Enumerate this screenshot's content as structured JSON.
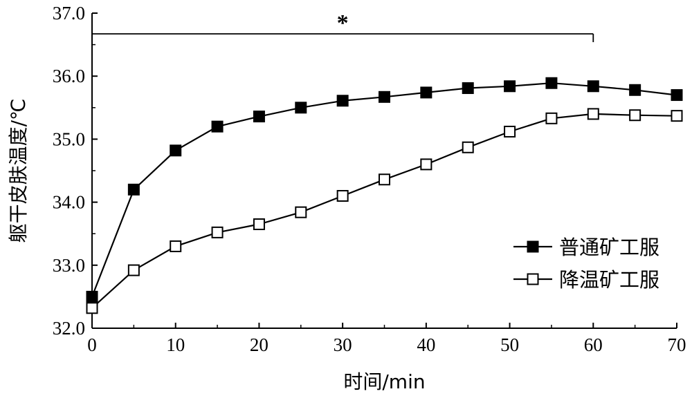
{
  "chart_data": {
    "type": "line",
    "xlabel": "时间/min",
    "ylabel": "躯干皮肤温度/℃",
    "xlim": [
      0,
      70
    ],
    "ylim": [
      32.0,
      37.0
    ],
    "xticks": [
      "0",
      "10",
      "20",
      "30",
      "40",
      "50",
      "60",
      "70"
    ],
    "yticks": [
      "32.0",
      "33.0",
      "34.0",
      "35.0",
      "36.0",
      "37.0"
    ],
    "x": [
      0,
      5,
      10,
      15,
      20,
      25,
      30,
      35,
      40,
      45,
      50,
      55,
      60,
      65,
      70
    ],
    "series": [
      {
        "name": "普通矿工服",
        "marker": "filled-square",
        "values": [
          32.5,
          34.2,
          34.82,
          35.2,
          35.36,
          35.5,
          35.61,
          35.67,
          35.74,
          35.81,
          35.84,
          35.89,
          35.84,
          35.78,
          35.7
        ]
      },
      {
        "name": "降温矿工服",
        "marker": "open-square",
        "values": [
          32.32,
          32.92,
          33.3,
          33.52,
          33.65,
          33.84,
          34.1,
          34.36,
          34.6,
          34.87,
          35.12,
          35.33,
          35.4,
          35.38,
          35.37
        ]
      }
    ],
    "significance": {
      "label": "*",
      "x_start": 0,
      "x_end": 60
    },
    "legend_position": "right",
    "grid": false
  }
}
